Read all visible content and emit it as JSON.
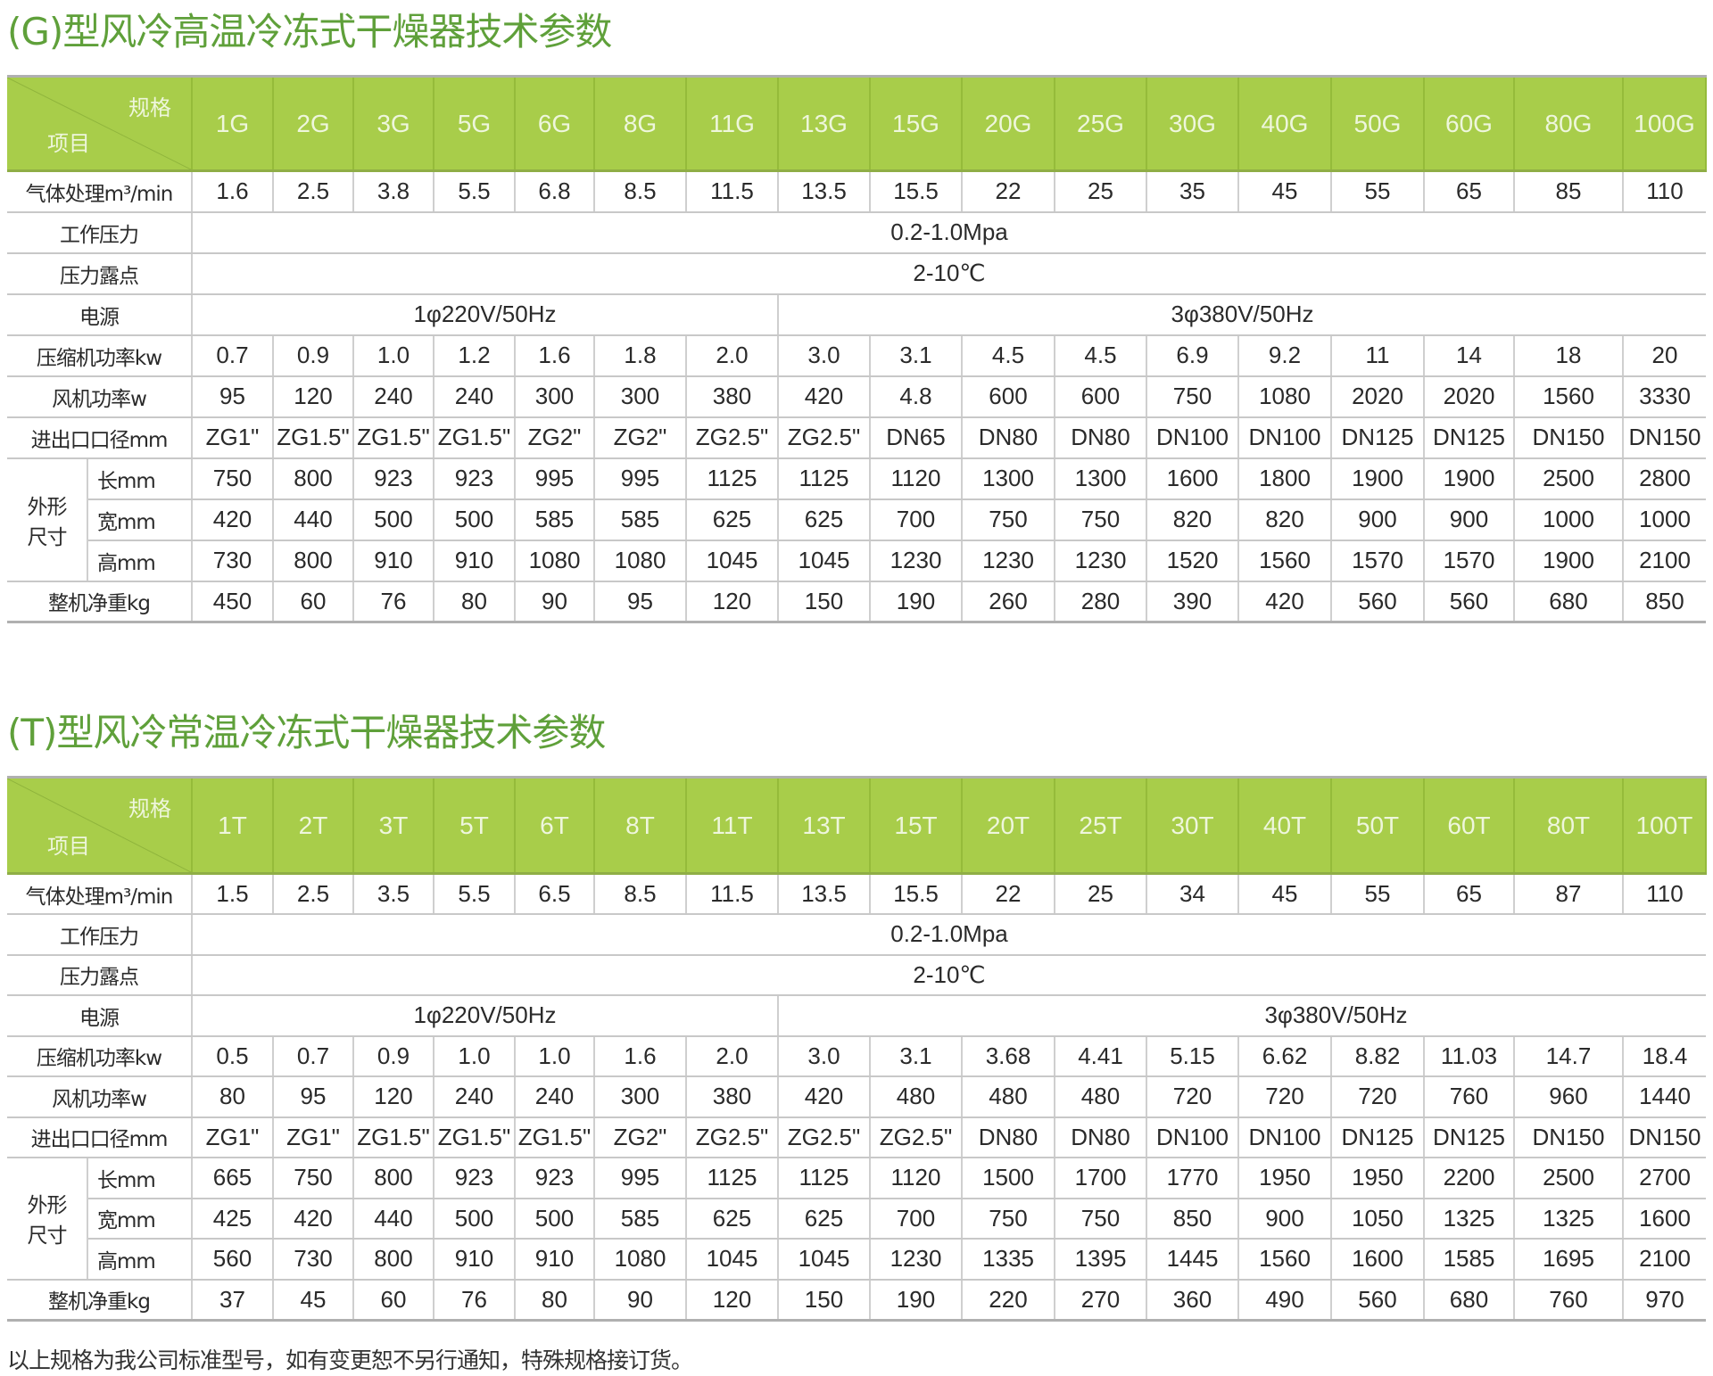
{
  "colors": {
    "header_green": "#a8cd4a",
    "title_green": "#5fa03a"
  },
  "tables": [
    {
      "title": "(G)型风冷高温冷冻式干燥器技术参数",
      "corner_spec": "规格",
      "corner_item": "项目",
      "models": [
        "1G",
        "2G",
        "3G",
        "5G",
        "6G",
        "8G",
        "11G",
        "13G",
        "15G",
        "20G",
        "25G",
        "30G",
        "40G",
        "50G",
        "60G",
        "80G",
        "100G"
      ],
      "flow": {
        "label": "气体处理m³/min",
        "values": [
          "1.6",
          "2.5",
          "3.8",
          "5.5",
          "6.8",
          "8.5",
          "11.5",
          "13.5",
          "15.5",
          "22",
          "25",
          "35",
          "45",
          "55",
          "65",
          "85",
          "110"
        ]
      },
      "pressure": {
        "label": "工作压力",
        "value": "0.2-1.0Mpa"
      },
      "dewpoint": {
        "label": "压力露点",
        "value": "2-10℃"
      },
      "power": {
        "label": "电源",
        "single": "1φ220V/50Hz",
        "three": "3φ380V/50Hz"
      },
      "compressor": {
        "label": "压缩机功率kw",
        "values": [
          "0.7",
          "0.9",
          "1.0",
          "1.2",
          "1.6",
          "1.8",
          "2.0",
          "3.0",
          "3.1",
          "4.5",
          "4.5",
          "6.9",
          "9.2",
          "11",
          "14",
          "18",
          "20"
        ]
      },
      "fan": {
        "label": "风机功率w",
        "values": [
          "95",
          "120",
          "240",
          "240",
          "300",
          "300",
          "380",
          "420",
          "4.8",
          "600",
          "600",
          "750",
          "1080",
          "2020",
          "2020",
          "1560",
          "3330"
        ]
      },
      "port": {
        "label": "进出口口径mm",
        "values": [
          "ZG1\"",
          "ZG1.5\"",
          "ZG1.5\"",
          "ZG1.5\"",
          "ZG2\"",
          "ZG2\"",
          "ZG2.5\"",
          "ZG2.5\"",
          "DN65",
          "DN80",
          "DN80",
          "DN100",
          "DN100",
          "DN125",
          "DN125",
          "DN150",
          "DN150"
        ]
      },
      "dims": {
        "label": "外形尺寸",
        "length": {
          "label": "长mm",
          "values": [
            "750",
            "800",
            "923",
            "923",
            "995",
            "995",
            "1125",
            "1125",
            "1120",
            "1300",
            "1300",
            "1600",
            "1800",
            "1900",
            "1900",
            "2500",
            "2800"
          ]
        },
        "width": {
          "label": "宽mm",
          "values": [
            "420",
            "440",
            "500",
            "500",
            "585",
            "585",
            "625",
            "625",
            "700",
            "750",
            "750",
            "820",
            "820",
            "900",
            "900",
            "1000",
            "1000"
          ]
        },
        "height": {
          "label": "高mm",
          "values": [
            "730",
            "800",
            "910",
            "910",
            "1080",
            "1080",
            "1045",
            "1045",
            "1230",
            "1230",
            "1230",
            "1520",
            "1560",
            "1570",
            "1570",
            "1900",
            "2100"
          ]
        }
      },
      "weight": {
        "label": "整机净重kg",
        "values": [
          "450",
          "60",
          "76",
          "80",
          "90",
          "95",
          "120",
          "150",
          "190",
          "260",
          "280",
          "390",
          "420",
          "560",
          "560",
          "680",
          "850"
        ]
      }
    },
    {
      "title": "(T)型风冷常温冷冻式干燥器技术参数",
      "corner_spec": "规格",
      "corner_item": "项目",
      "models": [
        "1T",
        "2T",
        "3T",
        "5T",
        "6T",
        "8T",
        "11T",
        "13T",
        "15T",
        "20T",
        "25T",
        "30T",
        "40T",
        "50T",
        "60T",
        "80T",
        "100T"
      ],
      "flow": {
        "label": "气体处理m³/min",
        "values": [
          "1.5",
          "2.5",
          "3.5",
          "5.5",
          "6.5",
          "8.5",
          "11.5",
          "13.5",
          "15.5",
          "22",
          "25",
          "34",
          "45",
          "55",
          "65",
          "87",
          "110"
        ]
      },
      "pressure": {
        "label": "工作压力",
        "value": "0.2-1.0Mpa"
      },
      "dewpoint": {
        "label": "压力露点",
        "value": "2-10℃"
      },
      "power": {
        "label": "电源",
        "single": "1φ220V/50Hz",
        "three": "3φ380V/50Hz"
      },
      "compressor": {
        "label": "压缩机功率kw",
        "values": [
          "0.5",
          "0.7",
          "0.9",
          "1.0",
          "1.0",
          "1.6",
          "2.0",
          "3.0",
          "3.1",
          "3.68",
          "4.41",
          "5.15",
          "6.62",
          "8.82",
          "11.03",
          "14.7",
          "18.4"
        ]
      },
      "fan": {
        "label": "风机功率w",
        "values": [
          "80",
          "95",
          "120",
          "240",
          "240",
          "300",
          "380",
          "420",
          "480",
          "480",
          "480",
          "720",
          "720",
          "720",
          "760",
          "960",
          "1440"
        ]
      },
      "port": {
        "label": "进出口口径mm",
        "values": [
          "ZG1\"",
          "ZG1\"",
          "ZG1.5\"",
          "ZG1.5\"",
          "ZG1.5\"",
          "ZG2\"",
          "ZG2.5\"",
          "ZG2.5\"",
          "ZG2.5\"",
          "DN80",
          "DN80",
          "DN100",
          "DN100",
          "DN125",
          "DN125",
          "DN150",
          "DN150"
        ]
      },
      "dims": {
        "label": "外形尺寸",
        "length": {
          "label": "长mm",
          "values": [
            "665",
            "750",
            "800",
            "923",
            "923",
            "995",
            "1125",
            "1125",
            "1120",
            "1500",
            "1700",
            "1770",
            "1950",
            "1950",
            "2200",
            "2500",
            "2700"
          ]
        },
        "width": {
          "label": "宽mm",
          "values": [
            "425",
            "420",
            "440",
            "500",
            "500",
            "585",
            "625",
            "625",
            "700",
            "750",
            "750",
            "850",
            "900",
            "1050",
            "1325",
            "1325",
            "1600"
          ]
        },
        "height": {
          "label": "高mm",
          "values": [
            "560",
            "730",
            "800",
            "910",
            "910",
            "1080",
            "1045",
            "1045",
            "1230",
            "1335",
            "1395",
            "1445",
            "1560",
            "1600",
            "1585",
            "1695",
            "2100"
          ]
        }
      },
      "weight": {
        "label": "整机净重kg",
        "values": [
          "37",
          "45",
          "60",
          "76",
          "80",
          "90",
          "120",
          "150",
          "190",
          "220",
          "270",
          "360",
          "490",
          "560",
          "680",
          "760",
          "970"
        ]
      }
    }
  ],
  "footnote": "以上规格为我公司标准型号，如有变更恕不另行通知，特殊规格接订货。"
}
